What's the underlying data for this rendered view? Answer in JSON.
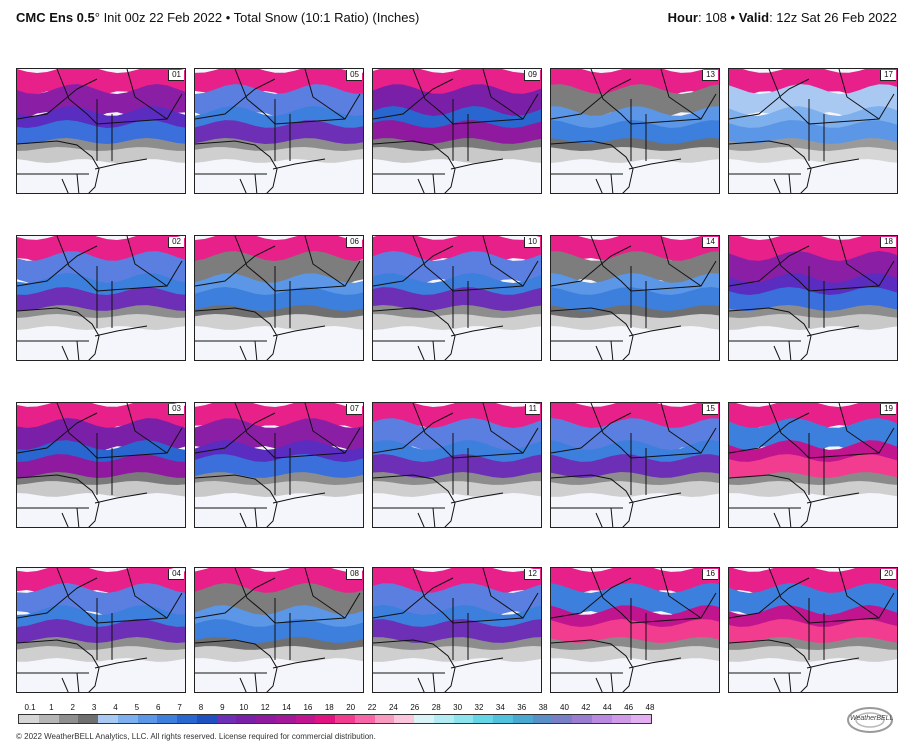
{
  "header": {
    "model": "CMC Ens 0.5",
    "degree": "°",
    "init": " Init 00z 22 Feb 2022",
    "sep1": " • ",
    "product": "Total Snow (10:1 Ratio) (Inches)",
    "hour_label": "Hour",
    "hour_value": ": 108",
    "sep2": " • ",
    "valid_label": "Valid",
    "valid_value": ": 12z Sat 26 Feb 2022"
  },
  "panels": [
    {
      "id": "01",
      "palette": "heavy"
    },
    {
      "id": "05",
      "palette": "blue"
    },
    {
      "id": "09",
      "palette": "purple"
    },
    {
      "id": "13",
      "palette": "gray"
    },
    {
      "id": "17",
      "palette": "light"
    },
    {
      "id": "02",
      "palette": "blue"
    },
    {
      "id": "06",
      "palette": "gray"
    },
    {
      "id": "10",
      "palette": "blue"
    },
    {
      "id": "14",
      "palette": "gray"
    },
    {
      "id": "18",
      "palette": "heavy"
    },
    {
      "id": "03",
      "palette": "purple"
    },
    {
      "id": "07",
      "palette": "heavy"
    },
    {
      "id": "11",
      "palette": "blue"
    },
    {
      "id": "15",
      "palette": "blue"
    },
    {
      "id": "19",
      "palette": "pink"
    },
    {
      "id": "04",
      "palette": "blue"
    },
    {
      "id": "08",
      "palette": "gray"
    },
    {
      "id": "12",
      "palette": "blue"
    },
    {
      "id": "16",
      "palette": "pink"
    },
    {
      "id": "20",
      "palette": "pink"
    }
  ],
  "scale": {
    "labels": [
      "0.1",
      "1",
      "2",
      "3",
      "4",
      "5",
      "6",
      "7",
      "8",
      "9",
      "10",
      "12",
      "14",
      "16",
      "18",
      "20",
      "22",
      "24",
      "26",
      "28",
      "30",
      "32",
      "34",
      "36",
      "38",
      "40",
      "42",
      "44",
      "46",
      "48"
    ],
    "colors": [
      "#d6d6d6",
      "#b5b5b5",
      "#8f8f8f",
      "#6f6f6f",
      "#a9c9f2",
      "#7fb0ee",
      "#5b97e6",
      "#3d7fdd",
      "#2a66cf",
      "#1f4fc0",
      "#6c2fb5",
      "#7a1fa8",
      "#8f1aa0",
      "#a3179a",
      "#c1148f",
      "#e01480",
      "#f23c8f",
      "#f766a6",
      "#f99abf",
      "#fbc6da",
      "#d9f3f7",
      "#b3ecf3",
      "#8be4ee",
      "#66d5e6",
      "#4fc2dd",
      "#4aa9d2",
      "#5b8fc8",
      "#7a7ec6",
      "#9a7cd0",
      "#b98ae0",
      "#d09ae8",
      "#e2b0f0"
    ]
  },
  "copyright": "© 2022 WeatherBELL Analytics, LLC. All rights reserved. License required for commercial distribution.",
  "logo_text": "WeatherBELL"
}
